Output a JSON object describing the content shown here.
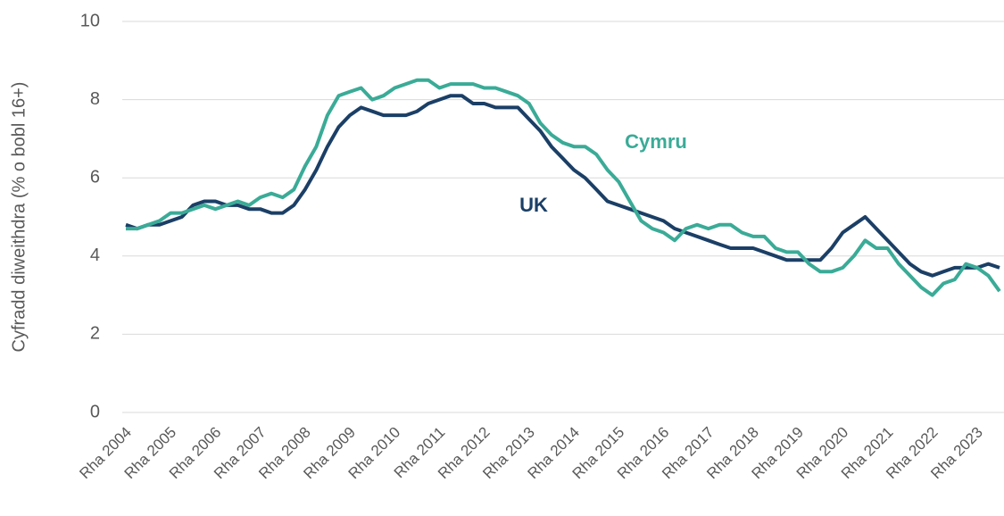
{
  "chart_data": {
    "type": "line",
    "y_label": "Cyfradd diweithdra (% o bobl 16+)",
    "categories": [
      "Rha 2004",
      null,
      null,
      null,
      "Rha 2005",
      null,
      null,
      null,
      "Rha 2006",
      null,
      null,
      null,
      "Rha 2007",
      null,
      null,
      null,
      "Rha 2008",
      null,
      null,
      null,
      "Rha 2009",
      null,
      null,
      null,
      "Rha 2010",
      null,
      null,
      null,
      "Rha 2011",
      null,
      null,
      null,
      "Rha 2012",
      null,
      null,
      null,
      "Rha 2013",
      null,
      null,
      null,
      "Rha 2014",
      null,
      null,
      null,
      "Rha 2015",
      null,
      null,
      null,
      "Rha 2016",
      null,
      null,
      null,
      "Rha 2017",
      null,
      null,
      null,
      "Rha 2018",
      null,
      null,
      null,
      "Rha 2019",
      null,
      null,
      null,
      "Rha 2020",
      null,
      null,
      null,
      "Rha 2021",
      null,
      null,
      null,
      "Rha 2022",
      null,
      null,
      null,
      "Rha 2023",
      null,
      null
    ],
    "series": [
      {
        "name": "UK",
        "color": "#1b3f66",
        "values": [
          4.8,
          4.7,
          4.8,
          4.8,
          4.9,
          5.0,
          5.3,
          5.4,
          5.4,
          5.3,
          5.3,
          5.2,
          5.2,
          5.1,
          5.1,
          5.3,
          5.7,
          6.2,
          6.8,
          7.3,
          7.6,
          7.8,
          7.7,
          7.6,
          7.6,
          7.6,
          7.7,
          7.9,
          8.0,
          8.1,
          8.1,
          7.9,
          7.9,
          7.8,
          7.8,
          7.8,
          7.5,
          7.2,
          6.8,
          6.5,
          6.2,
          6.0,
          5.7,
          5.4,
          5.3,
          5.2,
          5.1,
          5.0,
          4.9,
          4.7,
          4.6,
          4.5,
          4.4,
          4.3,
          4.2,
          4.2,
          4.2,
          4.1,
          4.0,
          3.9,
          3.9,
          3.9,
          3.9,
          4.2,
          4.6,
          4.8,
          5.0,
          4.7,
          4.4,
          4.1,
          3.8,
          3.6,
          3.5,
          3.6,
          3.7,
          3.7,
          3.7,
          3.8,
          3.7
        ]
      },
      {
        "name": "Cymru",
        "color": "#3aab97",
        "values": [
          4.7,
          4.7,
          4.8,
          4.9,
          5.1,
          5.1,
          5.2,
          5.3,
          5.2,
          5.3,
          5.4,
          5.3,
          5.5,
          5.6,
          5.5,
          5.7,
          6.3,
          6.8,
          7.6,
          8.1,
          8.2,
          8.3,
          8.0,
          8.1,
          8.3,
          8.4,
          8.5,
          8.5,
          8.3,
          8.4,
          8.4,
          8.4,
          8.3,
          8.3,
          8.2,
          8.1,
          7.9,
          7.4,
          7.1,
          6.9,
          6.8,
          6.8,
          6.6,
          6.2,
          5.9,
          5.4,
          4.9,
          4.7,
          4.6,
          4.4,
          4.7,
          4.8,
          4.7,
          4.8,
          4.8,
          4.6,
          4.5,
          4.5,
          4.2,
          4.1,
          4.1,
          3.8,
          3.6,
          3.6,
          3.7,
          4.0,
          4.4,
          4.2,
          4.2,
          3.8,
          3.5,
          3.2,
          3.0,
          3.3,
          3.4,
          3.8,
          3.7,
          3.5,
          3.1
        ]
      }
    ],
    "ylim": [
      0,
      10
    ],
    "yticks": [
      0,
      2,
      4,
      6,
      8,
      10
    ],
    "grid": true
  }
}
